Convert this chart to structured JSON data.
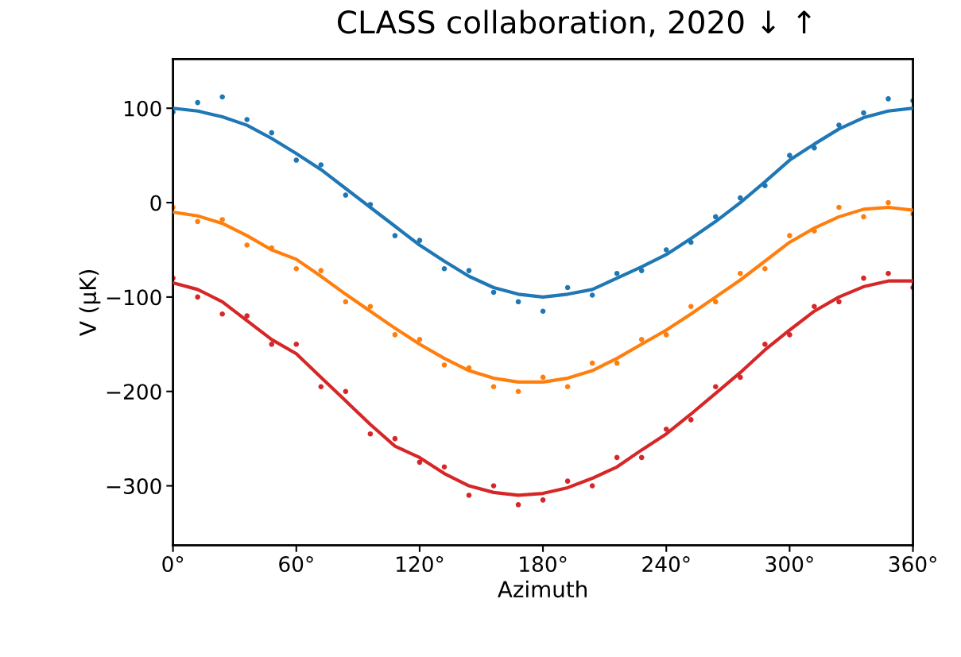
{
  "chart_data": {
    "type": "scatter",
    "xlabel": "Azimuth",
    "ylabel": "V (μK)",
    "annotations": [
      "CLASS collaboration, 2020 ↓ ↑"
    ],
    "xlim": [
      0,
      360
    ],
    "ylim": [
      -363,
      152
    ],
    "xticks": [
      {
        "value": 0,
        "label": "0°"
      },
      {
        "value": 60,
        "label": "60°"
      },
      {
        "value": 120,
        "label": "120°"
      },
      {
        "value": 180,
        "label": "180°"
      },
      {
        "value": 240,
        "label": "240°"
      },
      {
        "value": 300,
        "label": "300°"
      },
      {
        "value": 360,
        "label": "360°"
      }
    ],
    "yticks": [
      -300,
      -200,
      -100,
      0,
      100
    ],
    "grid": false,
    "legend": false,
    "marker": "circle",
    "x": [
      0,
      12,
      24,
      36,
      48,
      60,
      72,
      84,
      96,
      108,
      120,
      132,
      144,
      156,
      168,
      180,
      192,
      204,
      216,
      228,
      240,
      252,
      264,
      276,
      288,
      300,
      312,
      324,
      336,
      348,
      360
    ],
    "series": [
      {
        "color": "#1f77b4",
        "values": [
          96,
          106,
          112,
          88,
          74,
          45,
          40,
          8,
          -2,
          -35,
          -40,
          -70,
          -72,
          -95,
          -105,
          -115,
          -90,
          -98,
          -75,
          -72,
          -50,
          -42,
          -15,
          5,
          18,
          50,
          58,
          82,
          95,
          110,
          108
        ]
      },
      {
        "color": "#ff7f0e",
        "values": [
          -5,
          -20,
          -18,
          -45,
          -48,
          -70,
          -72,
          -105,
          -110,
          -140,
          -145,
          -172,
          -175,
          -195,
          -200,
          -185,
          -195,
          -170,
          -170,
          -145,
          -140,
          -110,
          -105,
          -75,
          -70,
          -35,
          -30,
          -5,
          -15,
          0,
          -12
        ]
      },
      {
        "color": "#d62728",
        "values": [
          -80,
          -100,
          -118,
          -120,
          -150,
          -150,
          -195,
          -200,
          -245,
          -250,
          -275,
          -280,
          -310,
          -300,
          -320,
          -315,
          -295,
          -300,
          -270,
          -270,
          -240,
          -230,
          -195,
          -185,
          -150,
          -140,
          -110,
          -105,
          -80,
          -75,
          -90
        ]
      },
      {
        "type": "line",
        "marker": "none",
        "color": "#1f77b4",
        "values": [
          100,
          97,
          91,
          82,
          68,
          52,
          35,
          15,
          -5,
          -25,
          -45,
          -62,
          -78,
          -90,
          -97,
          -100,
          -97,
          -92,
          -80,
          -68,
          -55,
          -38,
          -20,
          0,
          22,
          45,
          62,
          78,
          90,
          97,
          100
        ]
      },
      {
        "type": "line",
        "marker": "none",
        "color": "#ff7f0e",
        "values": [
          -10,
          -14,
          -22,
          -35,
          -50,
          -60,
          -78,
          -97,
          -115,
          -133,
          -150,
          -165,
          -178,
          -186,
          -190,
          -190,
          -186,
          -178,
          -165,
          -150,
          -135,
          -118,
          -100,
          -82,
          -62,
          -42,
          -27,
          -15,
          -7,
          -5,
          -8
        ]
      },
      {
        "type": "line",
        "marker": "none",
        "color": "#d62728",
        "values": [
          -85,
          -92,
          -105,
          -125,
          -145,
          -160,
          -185,
          -210,
          -235,
          -258,
          -270,
          -287,
          -300,
          -307,
          -310,
          -308,
          -302,
          -292,
          -280,
          -262,
          -245,
          -224,
          -202,
          -180,
          -156,
          -135,
          -115,
          -100,
          -89,
          -83,
          -83
        ]
      }
    ]
  }
}
